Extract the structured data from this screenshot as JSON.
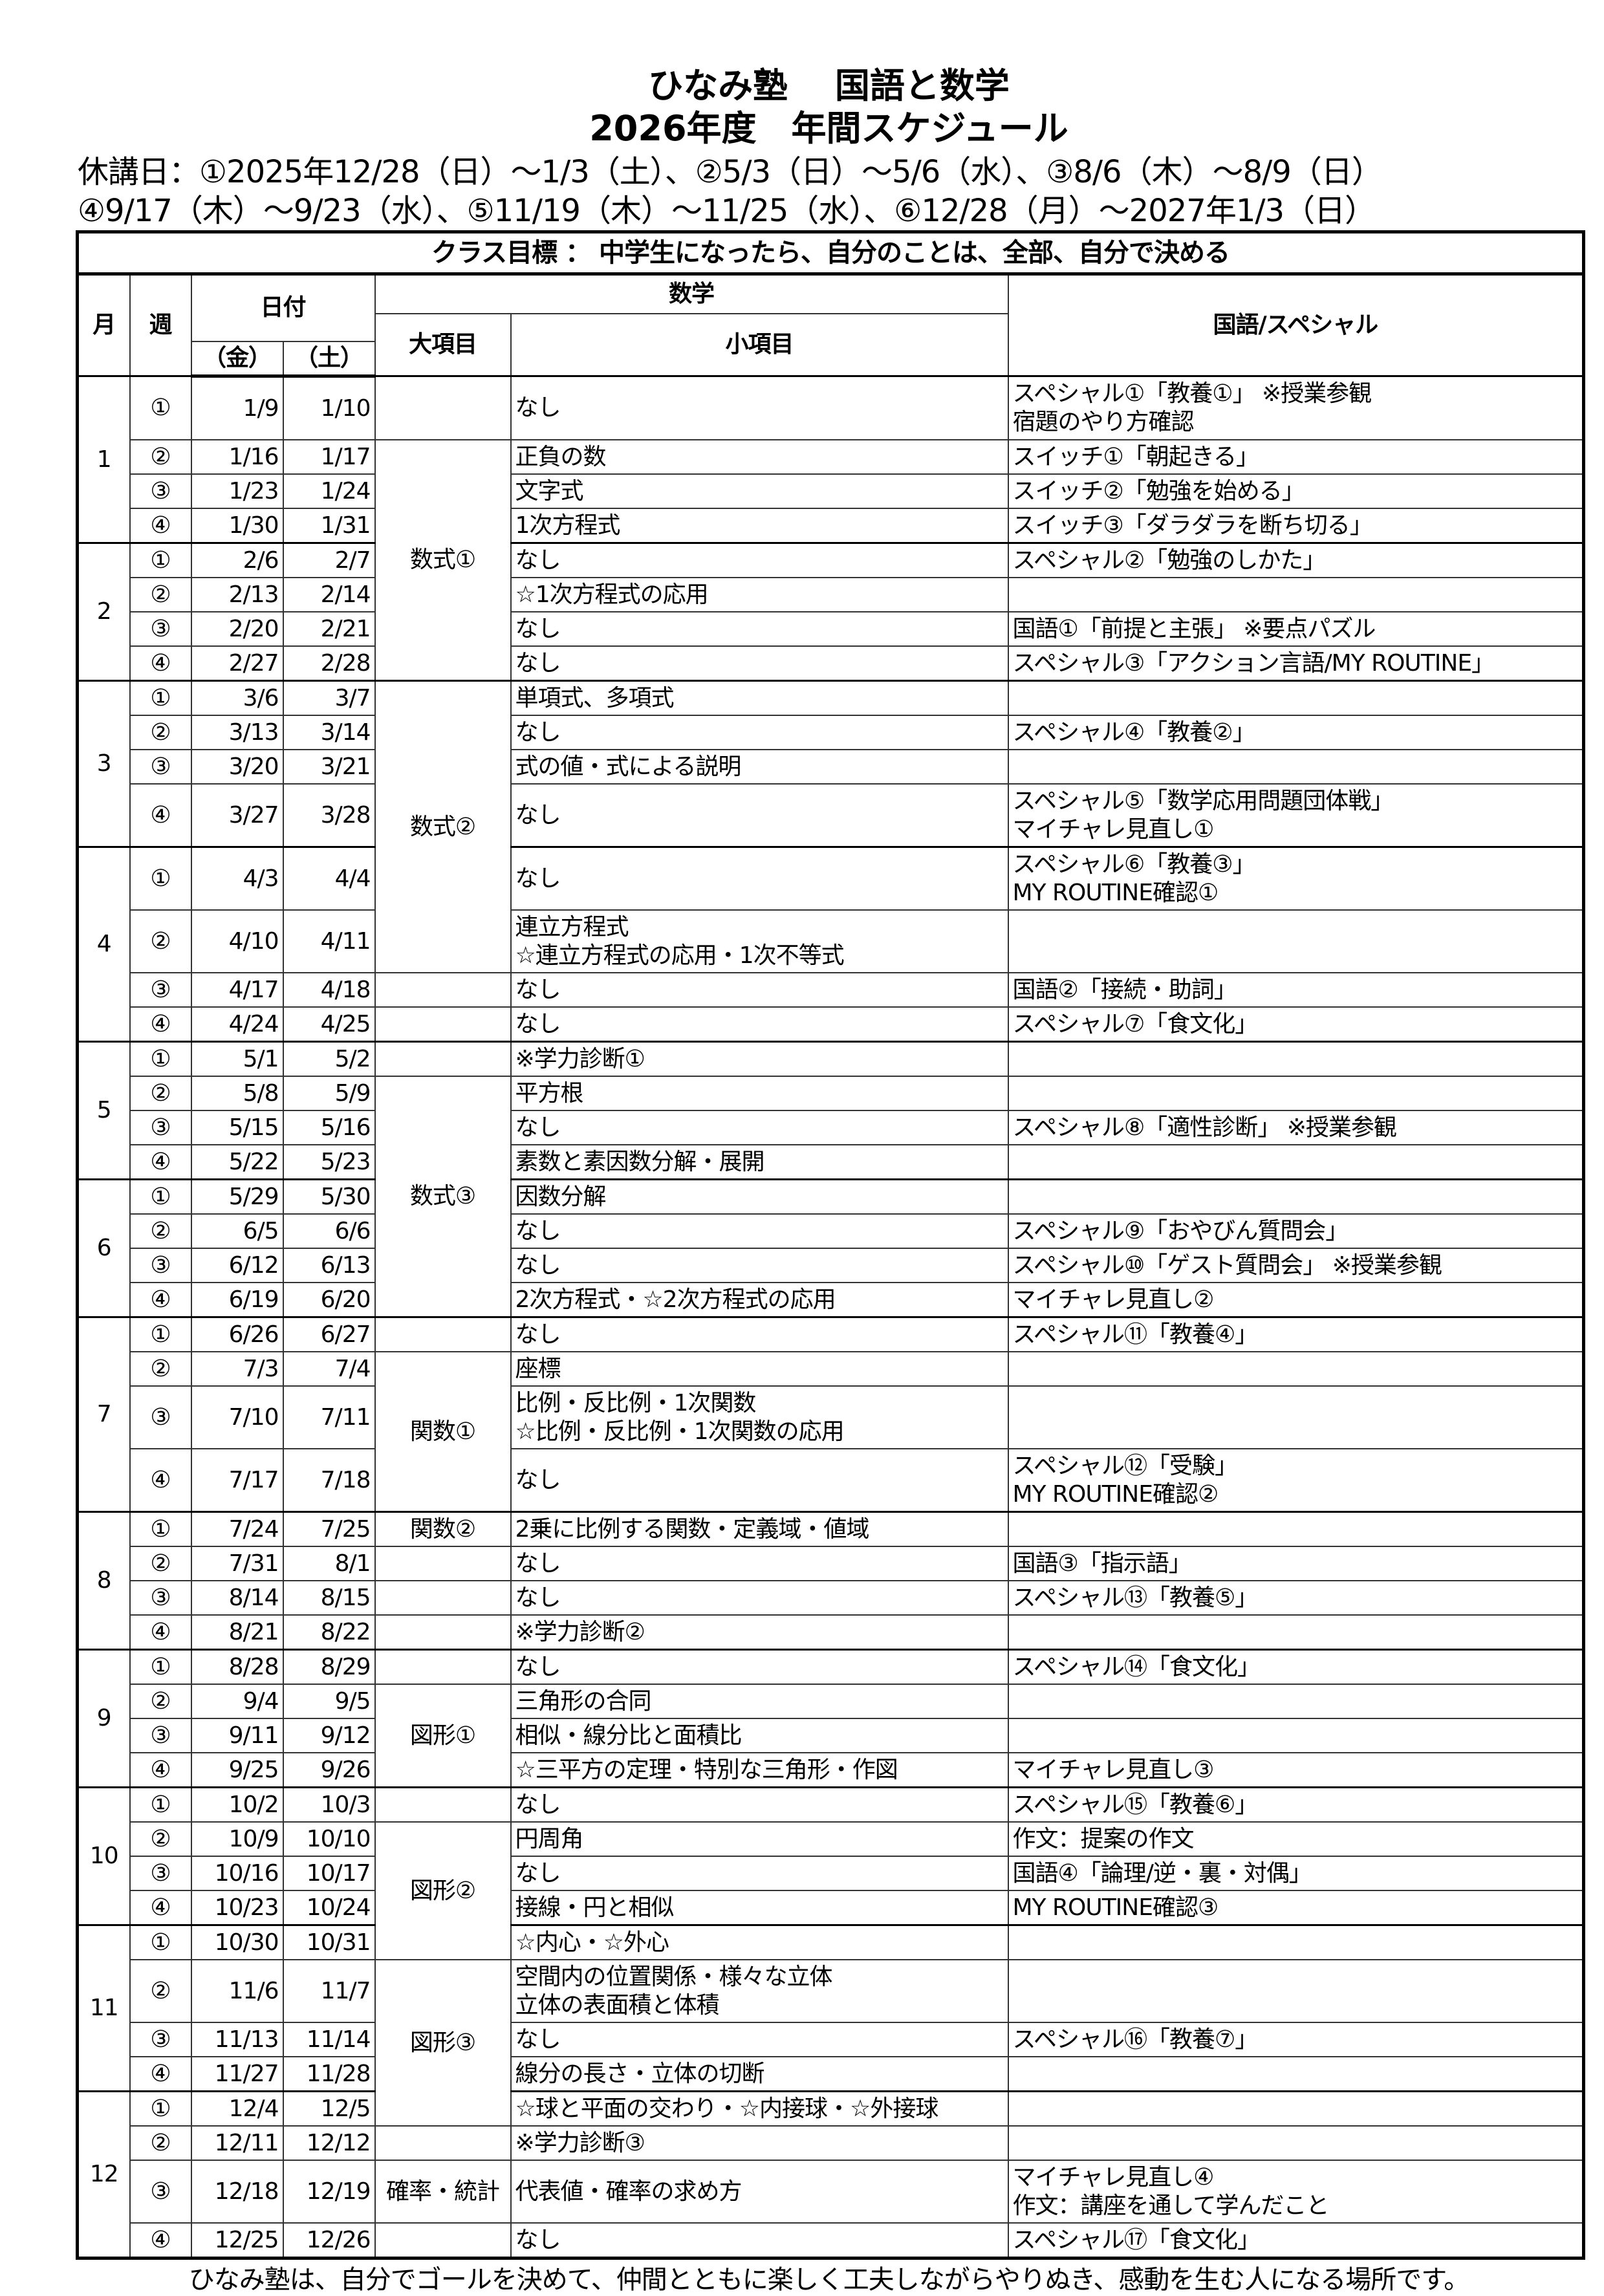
{
  "header": {
    "title_line1": "ひなみ塾　 国語と数学",
    "title_line2": "2026年度　年間スケジュール",
    "holidays_line1": "休講日：①2025年12/28（日）～1/3（土）、②5/3（日）～5/6（水）、③8/6（木）～8/9（日）",
    "holidays_line2": "④9/17（木）～9/23（水）、⑤11/19（木）～11/25（水）、⑥12/28（月）～2027年1/3（日）"
  },
  "table": {
    "class_goal": "クラス目標 ： 中学生になったら、自分のことは、全部、自分で決める",
    "columns": {
      "month": "月",
      "week": "週",
      "date": "日付",
      "fri": "（金）",
      "sat": "（土）",
      "math": "数学",
      "major": "大項目",
      "minor": "小項目",
      "kokugo": "国語/スペシャル"
    },
    "months": [
      {
        "month": "1",
        "weeks": [
          {
            "week": "①",
            "fri": "1/9",
            "sat": "1/10",
            "major": "",
            "minor": "なし",
            "kokugo": "スペシャル①「教養①」 ※授業参観\n宿題のやり方確認"
          },
          {
            "week": "②",
            "fri": "1/16",
            "sat": "1/17",
            "major": "数式①",
            "minor": "正負の数",
            "kokugo": "スイッチ①「朝起きる」"
          },
          {
            "week": "③",
            "fri": "1/23",
            "sat": "1/24",
            "minor": "文字式",
            "kokugo": "スイッチ②「勉強を始める」"
          },
          {
            "week": "④",
            "fri": "1/30",
            "sat": "1/31",
            "minor": "1次方程式",
            "kokugo": "スイッチ③「ダラダラを断ち切る」"
          }
        ]
      },
      {
        "month": "2",
        "weeks": [
          {
            "week": "①",
            "fri": "2/6",
            "sat": "2/7",
            "minor": "なし",
            "kokugo": "スペシャル②「勉強のしかた」"
          },
          {
            "week": "②",
            "fri": "2/13",
            "sat": "2/14",
            "minor": "☆1次方程式の応用",
            "kokugo": ""
          },
          {
            "week": "③",
            "fri": "2/20",
            "sat": "2/21",
            "minor": "なし",
            "kokugo": "国語①「前提と主張」 ※要点パズル"
          },
          {
            "week": "④",
            "fri": "2/27",
            "sat": "2/28",
            "minor": "なし",
            "kokugo": "スペシャル③「アクション言語/MY ROUTINE」"
          }
        ]
      },
      {
        "month": "3",
        "weeks": [
          {
            "week": "①",
            "fri": "3/6",
            "sat": "3/7",
            "major": "数式②",
            "minor": "単項式、多項式",
            "kokugo": ""
          },
          {
            "week": "②",
            "fri": "3/13",
            "sat": "3/14",
            "minor": "なし",
            "kokugo": "スペシャル④「教養②」"
          },
          {
            "week": "③",
            "fri": "3/20",
            "sat": "3/21",
            "minor": "式の値・式による説明",
            "kokugo": ""
          },
          {
            "week": "④",
            "fri": "3/27",
            "sat": "3/28",
            "minor": "なし",
            "kokugo": "スペシャル⑤「数学応用問題団体戦」\nマイチャレ見直し①"
          }
        ]
      },
      {
        "month": "4",
        "weeks": [
          {
            "week": "①",
            "fri": "4/3",
            "sat": "4/4",
            "minor": "なし",
            "kokugo": "スペシャル⑥「教養③」\nMY ROUTINE確認①"
          },
          {
            "week": "②",
            "fri": "4/10",
            "sat": "4/11",
            "minor": "連立方程式\n☆連立方程式の応用・1次不等式",
            "kokugo": ""
          },
          {
            "week": "③",
            "fri": "4/17",
            "sat": "4/18",
            "major": "",
            "minor": "なし",
            "kokugo": "国語②「接続・助詞」"
          },
          {
            "week": "④",
            "fri": "4/24",
            "sat": "4/25",
            "major": "",
            "minor": "なし",
            "kokugo": "スペシャル⑦「食文化」"
          }
        ]
      },
      {
        "month": "5",
        "weeks": [
          {
            "week": "①",
            "fri": "5/1",
            "sat": "5/2",
            "major": "",
            "minor": "※学力診断①",
            "kokugo": ""
          },
          {
            "week": "②",
            "fri": "5/8",
            "sat": "5/9",
            "major": "数式③",
            "minor": "平方根",
            "kokugo": ""
          },
          {
            "week": "③",
            "fri": "5/15",
            "sat": "5/16",
            "minor": "なし",
            "kokugo": "スペシャル⑧「適性診断」 ※授業参観"
          },
          {
            "week": "④",
            "fri": "5/22",
            "sat": "5/23",
            "minor": "素数と素因数分解・展開",
            "kokugo": ""
          }
        ]
      },
      {
        "month": "6",
        "weeks": [
          {
            "week": "①",
            "fri": "5/29",
            "sat": "5/30",
            "minor": "因数分解",
            "kokugo": ""
          },
          {
            "week": "②",
            "fri": "6/5",
            "sat": "6/6",
            "minor": "なし",
            "kokugo": "スペシャル⑨「おやびん質問会」"
          },
          {
            "week": "③",
            "fri": "6/12",
            "sat": "6/13",
            "minor": "なし",
            "kokugo": "スペシャル⑩「ゲスト質問会」 ※授業参観"
          },
          {
            "week": "④",
            "fri": "6/19",
            "sat": "6/20",
            "minor": "2次方程式・☆2次方程式の応用",
            "kokugo": "マイチャレ見直し②"
          }
        ]
      },
      {
        "month": "7",
        "weeks": [
          {
            "week": "①",
            "fri": "6/26",
            "sat": "6/27",
            "major": "",
            "minor": "なし",
            "kokugo": "スペシャル⑪「教養④」"
          },
          {
            "week": "②",
            "fri": "7/3",
            "sat": "7/4",
            "major": "関数①",
            "minor": "座標",
            "kokugo": ""
          },
          {
            "week": "③",
            "fri": "7/10",
            "sat": "7/11",
            "minor": "比例・反比例・1次関数\n☆比例・反比例・1次関数の応用",
            "kokugo": ""
          },
          {
            "week": "④",
            "fri": "7/17",
            "sat": "7/18",
            "minor": "なし",
            "kokugo": "スペシャル⑫「受験」\nMY ROUTINE確認②"
          }
        ]
      },
      {
        "month": "8",
        "weeks": [
          {
            "week": "①",
            "fri": "7/24",
            "sat": "7/25",
            "major": "関数②",
            "minor": "2乗に比例する関数・定義域・値域",
            "kokugo": ""
          },
          {
            "week": "②",
            "fri": "7/31",
            "sat": "8/1",
            "major": "",
            "minor": "なし",
            "kokugo": "国語③「指示語」"
          },
          {
            "week": "③",
            "fri": "8/14",
            "sat": "8/15",
            "major": "",
            "minor": "なし",
            "kokugo": "スペシャル⑬「教養⑤」"
          },
          {
            "week": "④",
            "fri": "8/21",
            "sat": "8/22",
            "major": "",
            "minor": "※学力診断②",
            "kokugo": ""
          }
        ]
      },
      {
        "month": "9",
        "weeks": [
          {
            "week": "①",
            "fri": "8/28",
            "sat": "8/29",
            "major": "",
            "minor": "なし",
            "kokugo": "スペシャル⑭「食文化」"
          },
          {
            "week": "②",
            "fri": "9/4",
            "sat": "9/5",
            "major": "図形①",
            "minor": "三角形の合同",
            "kokugo": ""
          },
          {
            "week": "③",
            "fri": "9/11",
            "sat": "9/12",
            "minor": "相似・線分比と面積比",
            "kokugo": ""
          },
          {
            "week": "④",
            "fri": "9/25",
            "sat": "9/26",
            "minor": "☆三平方の定理・特別な三角形・作図",
            "kokugo": "マイチャレ見直し③"
          }
        ]
      },
      {
        "month": "10",
        "weeks": [
          {
            "week": "①",
            "fri": "10/2",
            "sat": "10/3",
            "major": "",
            "minor": "なし",
            "kokugo": "スペシャル⑮「教養⑥」"
          },
          {
            "week": "②",
            "fri": "10/9",
            "sat": "10/10",
            "major": "図形②",
            "minor": "円周角",
            "kokugo": "作文：提案の作文"
          },
          {
            "week": "③",
            "fri": "10/16",
            "sat": "10/17",
            "minor": "なし",
            "kokugo": "国語④「論理/逆・裏・対偶」"
          },
          {
            "week": "④",
            "fri": "10/23",
            "sat": "10/24",
            "minor": "接線・円と相似",
            "kokugo": "MY ROUTINE確認③"
          }
        ]
      },
      {
        "month": "11",
        "weeks": [
          {
            "week": "①",
            "fri": "10/30",
            "sat": "10/31",
            "minor": "☆内心・☆外心",
            "kokugo": ""
          },
          {
            "week": "②",
            "fri": "11/6",
            "sat": "11/7",
            "major": "図形③",
            "minor": "空間内の位置関係・様々な立体\n立体の表面積と体積",
            "kokugo": ""
          },
          {
            "week": "③",
            "fri": "11/13",
            "sat": "11/14",
            "minor": "なし",
            "kokugo": "スペシャル⑯「教養⑦」"
          },
          {
            "week": "④",
            "fri": "11/27",
            "sat": "11/28",
            "minor": "線分の長さ・立体の切断",
            "kokugo": ""
          }
        ]
      },
      {
        "month": "12",
        "weeks": [
          {
            "week": "①",
            "fri": "12/4",
            "sat": "12/5",
            "minor": "☆球と平面の交わり・☆内接球・☆外接球",
            "kokugo": ""
          },
          {
            "week": "②",
            "fri": "12/11",
            "sat": "12/12",
            "major": "",
            "minor": "※学力診断③",
            "kokugo": ""
          },
          {
            "week": "③",
            "fri": "12/18",
            "sat": "12/19",
            "major": "確率・統計",
            "minor": "代表値・確率の求め方",
            "kokugo": "マイチャレ見直し④\n作文：講座を通して学んだこと"
          },
          {
            "week": "④",
            "fri": "12/25",
            "sat": "12/26",
            "major": "",
            "minor": "なし",
            "kokugo": "スペシャル⑰「食文化」"
          }
        ]
      }
    ]
  },
  "footer": {
    "motto": "ひなみ塾は、自分でゴールを決めて、仲間とともに楽しく工夫しながらやりぬき、感動を生む人になる場所です。"
  }
}
